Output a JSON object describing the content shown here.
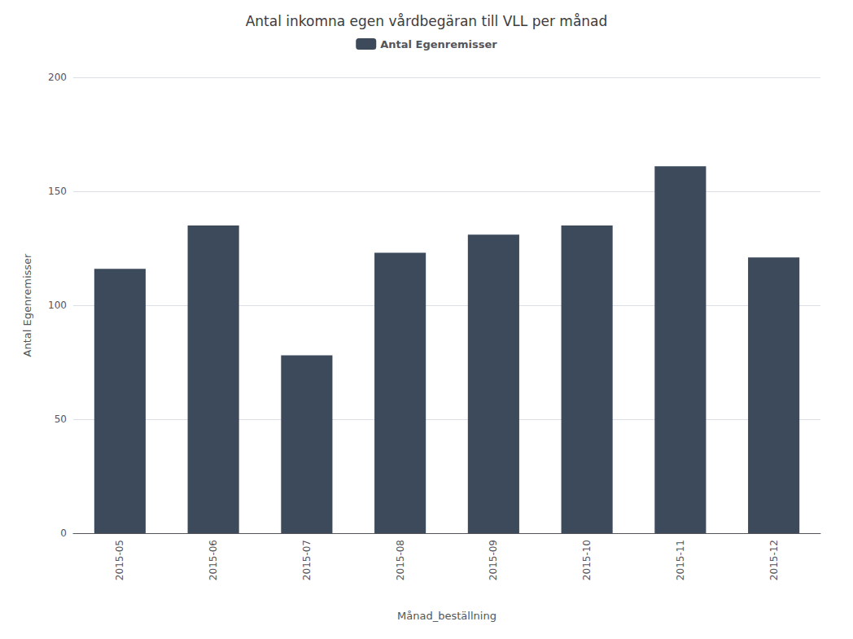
{
  "chart_data": {
    "type": "bar",
    "title": "Antal inkomna egen vårdbegäran till VLL per månad",
    "xlabel": "Månad_beställning",
    "ylabel": "Antal Egenremisser",
    "categories": [
      "2015-05",
      "2015-06",
      "2015-07",
      "2015-08",
      "2015-09",
      "2015-10",
      "2015-11",
      "2015-12"
    ],
    "series": [
      {
        "name": "Antal Egenremisser",
        "color": "#3d4a5c",
        "values": [
          116,
          135,
          78,
          123,
          131,
          135,
          161,
          121
        ]
      }
    ],
    "ylim": [
      0,
      200
    ],
    "yticks": [
      0,
      50,
      100,
      150,
      200
    ],
    "grid": true,
    "legend": "top"
  }
}
